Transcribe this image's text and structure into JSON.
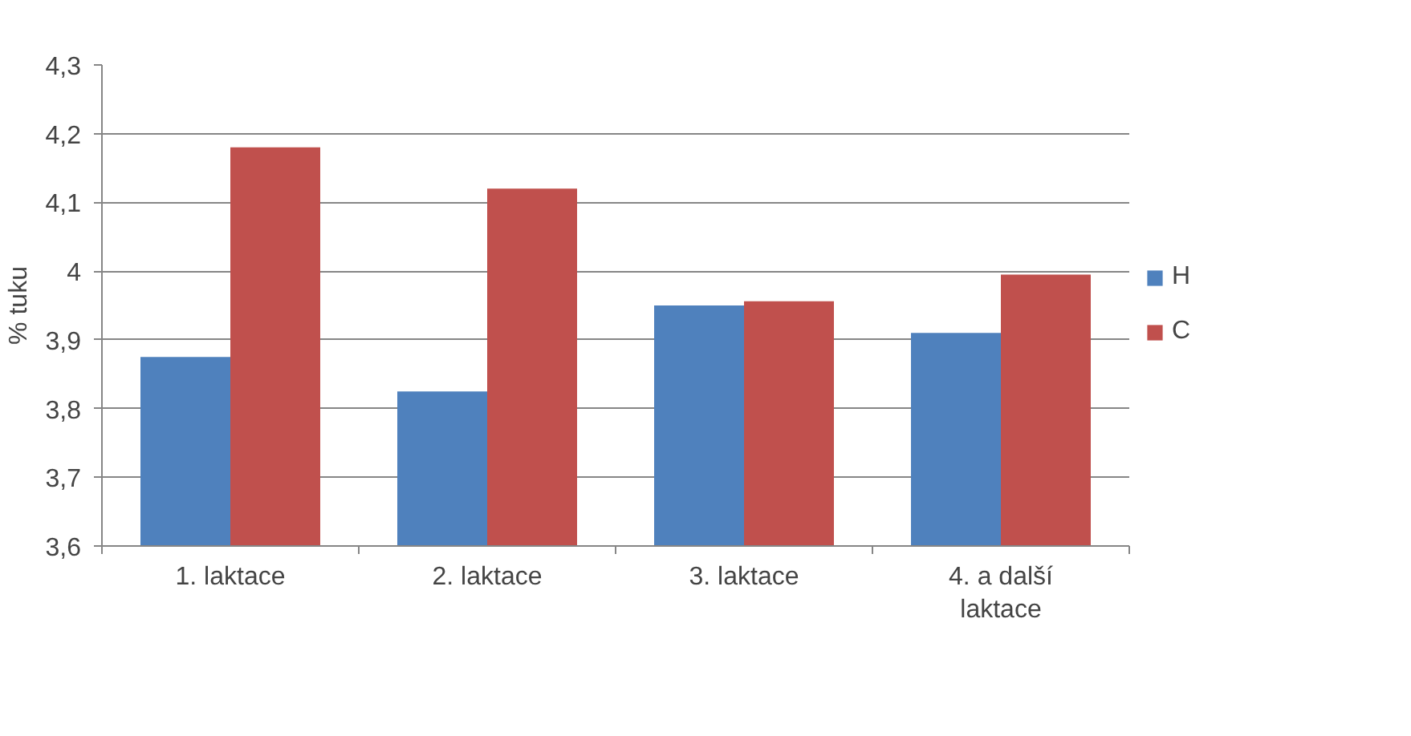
{
  "chart_data": {
    "type": "bar",
    "ylabel": "% tuku",
    "categories": [
      "1. laktace",
      "2. laktace",
      "3. laktace",
      "4. a další laktace"
    ],
    "series": [
      {
        "name": "H",
        "color": "#4f81bd",
        "values": [
          3.875,
          3.825,
          3.95,
          3.91
        ]
      },
      {
        "name": "C",
        "color": "#c0504d",
        "values": [
          4.18,
          4.12,
          3.956,
          3.995
        ]
      }
    ],
    "ylim": [
      3.6,
      4.3
    ],
    "yticks": [
      {
        "value": 3.6,
        "label": "3,6"
      },
      {
        "value": 3.7,
        "label": "3,7"
      },
      {
        "value": 3.8,
        "label": "3,8"
      },
      {
        "value": 3.9,
        "label": "3,9"
      },
      {
        "value": 4,
        "label": "4"
      },
      {
        "value": 4.1,
        "label": "4,1"
      },
      {
        "value": 4.2,
        "label": "4,2"
      },
      {
        "value": 4.3,
        "label": "4,3"
      }
    ],
    "grid": "y",
    "legend": "right"
  }
}
